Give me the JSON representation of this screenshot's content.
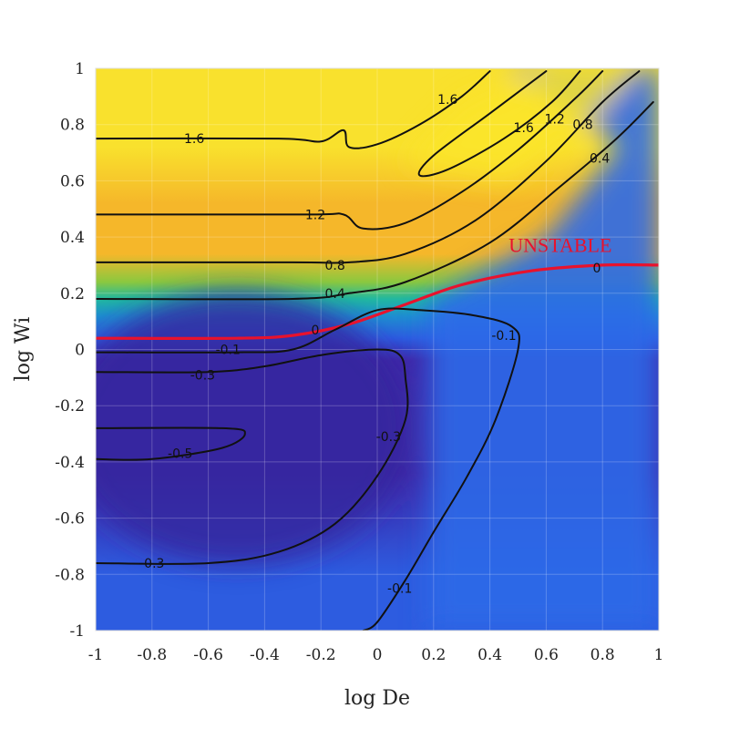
{
  "chart_data": {
    "type": "heatmap",
    "subtype": "filled contour map",
    "xlabel": "log De",
    "ylabel": "log Wi",
    "xlim": [
      -1,
      1
    ],
    "ylim": [
      -1,
      1
    ],
    "xticks": [
      "-1",
      "-0.8",
      "-0.6",
      "-0.4",
      "-0.2",
      "0",
      "0.2",
      "0.4",
      "0.6",
      "0.8",
      "1"
    ],
    "yticks": [
      "-1",
      "-0.8",
      "-0.6",
      "-0.4",
      "-0.2",
      "0",
      "0.2",
      "0.4",
      "0.6",
      "0.8",
      "1"
    ],
    "grid": true,
    "colormap": [
      "#3e26a8",
      "#2d5ce0",
      "#1e8fd0",
      "#21b8a0",
      "#8bc83f",
      "#f5b72a",
      "#f9e12d"
    ],
    "contour_color": "#111111",
    "neutral_contour_color": "#e8122d",
    "contours": [
      {
        "level": "1.6",
        "points": [
          [
            -1,
            0.75
          ],
          [
            -0.35,
            0.75
          ],
          [
            -0.2,
            0.74
          ],
          [
            -0.12,
            0.78
          ],
          [
            -0.1,
            0.72
          ],
          [
            0.0,
            0.73
          ],
          [
            0.15,
            0.8
          ],
          [
            0.3,
            0.9
          ],
          [
            0.4,
            0.99
          ]
        ]
      },
      {
        "level": "1.6",
        "points": [
          [
            0.6,
            0.99
          ],
          [
            0.4,
            0.84
          ],
          [
            0.2,
            0.69
          ],
          [
            0.15,
            0.62
          ],
          [
            0.25,
            0.64
          ],
          [
            0.45,
            0.75
          ],
          [
            0.62,
            0.88
          ],
          [
            0.72,
            0.99
          ]
        ]
      },
      {
        "level": "1.2",
        "points": [
          [
            -1,
            0.48
          ],
          [
            -0.25,
            0.48
          ],
          [
            -0.12,
            0.48
          ],
          [
            -0.05,
            0.43
          ],
          [
            0.1,
            0.45
          ],
          [
            0.3,
            0.56
          ],
          [
            0.5,
            0.71
          ],
          [
            0.7,
            0.89
          ],
          [
            0.8,
            0.99
          ]
        ]
      },
      {
        "level": "0.8",
        "points": [
          [
            -1,
            0.31
          ],
          [
            -0.3,
            0.31
          ],
          [
            -0.1,
            0.31
          ],
          [
            0.1,
            0.34
          ],
          [
            0.35,
            0.46
          ],
          [
            0.6,
            0.67
          ],
          [
            0.8,
            0.88
          ],
          [
            0.93,
            0.99
          ]
        ]
      },
      {
        "level": "0.4",
        "points": [
          [
            -1,
            0.18
          ],
          [
            -0.3,
            0.18
          ],
          [
            -0.1,
            0.2
          ],
          [
            0.1,
            0.24
          ],
          [
            0.4,
            0.38
          ],
          [
            0.65,
            0.58
          ],
          [
            0.85,
            0.75
          ],
          [
            0.98,
            0.88
          ]
        ]
      },
      {
        "level": "0",
        "points": [
          [
            -1,
            0.04
          ],
          [
            -0.5,
            0.04
          ],
          [
            -0.3,
            0.05
          ],
          [
            -0.1,
            0.09
          ],
          [
            0.1,
            0.16
          ],
          [
            0.3,
            0.23
          ],
          [
            0.55,
            0.28
          ],
          [
            0.8,
            0.3
          ],
          [
            1.0,
            0.3
          ]
        ],
        "highlight": true
      },
      {
        "level": "-0.1",
        "points": [
          [
            -1,
            -0.01
          ],
          [
            -0.5,
            -0.01
          ],
          [
            -0.3,
            0.0
          ],
          [
            -0.15,
            0.07
          ],
          [
            0.0,
            0.14
          ],
          [
            0.15,
            0.14
          ],
          [
            0.35,
            0.12
          ],
          [
            0.48,
            0.08
          ],
          [
            0.5,
            0.0
          ],
          [
            0.42,
            -0.25
          ],
          [
            0.32,
            -0.45
          ],
          [
            0.2,
            -0.65
          ],
          [
            0.1,
            -0.82
          ],
          [
            0.0,
            -0.97
          ],
          [
            -0.05,
            -1.0
          ]
        ]
      },
      {
        "level": "-0.3",
        "points": [
          [
            -1,
            -0.08
          ],
          [
            -0.6,
            -0.08
          ],
          [
            -0.4,
            -0.06
          ],
          [
            -0.2,
            -0.02
          ],
          [
            0.0,
            0.0
          ],
          [
            0.08,
            -0.02
          ],
          [
            0.1,
            -0.1
          ],
          [
            0.1,
            -0.25
          ],
          [
            0.0,
            -0.45
          ],
          [
            -0.15,
            -0.62
          ],
          [
            -0.35,
            -0.72
          ],
          [
            -0.6,
            -0.76
          ],
          [
            -1,
            -0.76
          ]
        ]
      },
      {
        "level": "-0.5",
        "points": [
          [
            -1,
            -0.28
          ],
          [
            -0.55,
            -0.28
          ],
          [
            -0.47,
            -0.3
          ],
          [
            -0.55,
            -0.35
          ],
          [
            -0.8,
            -0.39
          ],
          [
            -1,
            -0.39
          ]
        ]
      }
    ],
    "contour_labels": [
      {
        "text": "1.6",
        "x": -0.65,
        "y": 0.75
      },
      {
        "text": "1.6",
        "x": 0.25,
        "y": 0.89
      },
      {
        "text": "1.6",
        "x": 0.52,
        "y": 0.79
      },
      {
        "text": "1.2",
        "x": 0.63,
        "y": 0.82
      },
      {
        "text": "0.8",
        "x": 0.73,
        "y": 0.8
      },
      {
        "text": "0.4",
        "x": 0.79,
        "y": 0.68
      },
      {
        "text": "1.2",
        "x": -0.22,
        "y": 0.48
      },
      {
        "text": "0.8",
        "x": -0.15,
        "y": 0.3
      },
      {
        "text": "0.4",
        "x": -0.15,
        "y": 0.2
      },
      {
        "text": "0",
        "x": -0.22,
        "y": 0.07
      },
      {
        "text": "0",
        "x": 0.78,
        "y": 0.29
      },
      {
        "text": "-0.1",
        "x": -0.53,
        "y": 0.0
      },
      {
        "text": "-0.1",
        "x": 0.45,
        "y": 0.05
      },
      {
        "text": "-0.1",
        "x": 0.08,
        "y": -0.85
      },
      {
        "text": "-0.3",
        "x": -0.62,
        "y": -0.09
      },
      {
        "text": "-0.3",
        "x": 0.04,
        "y": -0.31
      },
      {
        "text": "-0.3",
        "x": -0.8,
        "y": -0.76
      },
      {
        "text": "-0.5",
        "x": -0.7,
        "y": -0.37
      }
    ],
    "annotations": [
      {
        "text": "UNSTABLE",
        "x": 0.65,
        "y": 0.37
      }
    ]
  }
}
